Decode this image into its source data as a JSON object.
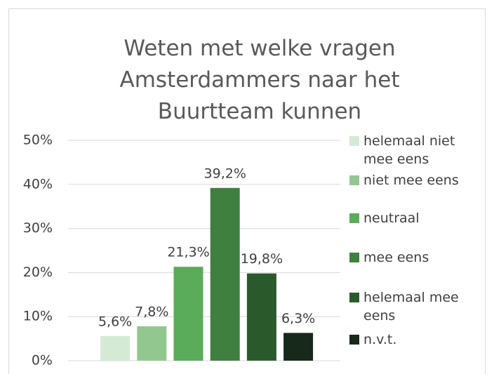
{
  "chart_data": {
    "type": "bar",
    "title": "Weten met welke vragen Amsterdammers naar het Buurtteam kunnen",
    "categories": [
      "helemaal niet mee eens",
      "niet mee eens",
      "neutraal",
      "mee eens",
      "helemaal mee eens",
      "n.v.t."
    ],
    "values": [
      5.6,
      7.8,
      21.3,
      39.2,
      19.8,
      6.3
    ],
    "value_labels": [
      "5,6%",
      "7,8%",
      "21,3%",
      "39,2%",
      "19,8%",
      "6,3%"
    ],
    "colors": [
      "#d4ead5",
      "#92c88f",
      "#5aab5a",
      "#3f7f40",
      "#2a5a2c",
      "#17291a"
    ],
    "ylim": [
      0,
      50
    ],
    "yticks": [
      {
        "value": 0,
        "label": "0%"
      },
      {
        "value": 10,
        "label": "10%"
      },
      {
        "value": 20,
        "label": "20%"
      },
      {
        "value": 30,
        "label": "30%"
      },
      {
        "value": 40,
        "label": "40%"
      },
      {
        "value": 50,
        "label": "50%"
      }
    ],
    "grid": true,
    "legend": "right"
  }
}
